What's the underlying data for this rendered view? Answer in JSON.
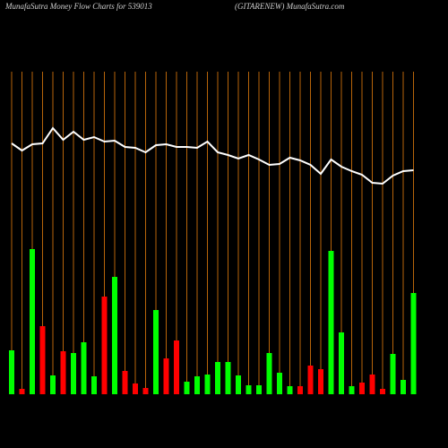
{
  "chart_data": {
    "type": "bar",
    "title": "MunafaSutra  Money Flow  Charts for 539013",
    "subtitle": "(GITARENEW) MunafaSutra.com",
    "background": "#000000",
    "grid_color": "#b8650a",
    "line_color": "#ffffff",
    "ylim": [
      0,
      360
    ],
    "bar_values": [
      49,
      6,
      162,
      76,
      21,
      48,
      46,
      58,
      20,
      109,
      131,
      26,
      12,
      7,
      94,
      40,
      60,
      14,
      20,
      22,
      36,
      36,
      21,
      10,
      10,
      46,
      24,
      9,
      9,
      32,
      28,
      160,
      69,
      9,
      13,
      22,
      6,
      45,
      16,
      113
    ],
    "bar_colors": [
      "#00ff00",
      "#ff0000",
      "#00ff00",
      "#ff0000",
      "#00ff00",
      "#ff0000",
      "#00ff00",
      "#00ff00",
      "#00ff00",
      "#ff0000",
      "#00ff00",
      "#ff0000",
      "#ff0000",
      "#ff0000",
      "#00ff00",
      "#ff0000",
      "#ff0000",
      "#00ff00",
      "#00ff00",
      "#00ff00",
      "#00ff00",
      "#00ff00",
      "#00ff00",
      "#00ff00",
      "#00ff00",
      "#00ff00",
      "#00ff00",
      "#00ff00",
      "#ff0000",
      "#ff0000",
      "#ff0000",
      "#00ff00",
      "#00ff00",
      "#00ff00",
      "#ff0000",
      "#ff0000",
      "#ff0000",
      "#00ff00",
      "#00ff00",
      "#00ff00"
    ],
    "line_values": [
      280,
      272,
      279,
      280,
      297,
      284,
      293,
      284,
      287,
      282,
      283,
      276,
      275,
      270,
      278,
      279,
      276,
      276,
      275,
      282,
      270,
      267,
      263,
      267,
      262,
      256,
      257,
      264,
      261,
      256,
      246,
      262,
      254,
      249,
      245,
      236,
      235,
      244,
      249,
      250
    ]
  }
}
